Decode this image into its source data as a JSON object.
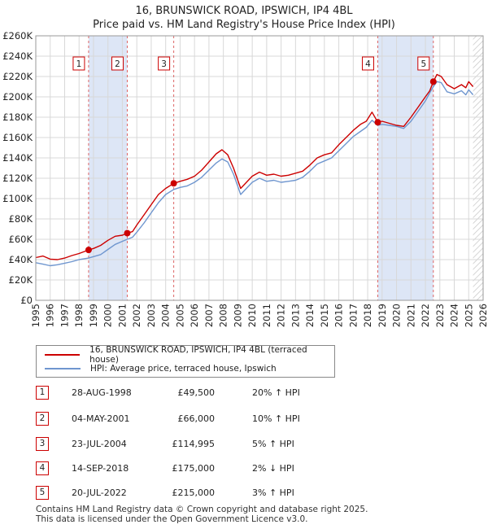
{
  "title": "16, BRUNSWICK ROAD, IPSWICH, IP4 4BL",
  "subtitle": "Price paid vs. HM Land Registry's House Price Index (HPI)",
  "colors": {
    "price": "#cc0000",
    "hpi": "#6f96cf",
    "shade": "#dde6f6",
    "vline": "#dd6666",
    "grid": "#d8d8d8",
    "badge_border": "#cc0000"
  },
  "chart_data": {
    "type": "line",
    "title": "16, BRUNSWICK ROAD, IPSWICH, IP4 4BL",
    "subtitle": "Price paid vs. HM Land Registry's House Price Index (HPI)",
    "xlim": [
      1995,
      2026
    ],
    "ylim": [
      0,
      260000
    ],
    "x_ticks": [
      1995,
      1996,
      1997,
      1998,
      1999,
      2000,
      2001,
      2002,
      2003,
      2004,
      2005,
      2006,
      2007,
      2008,
      2009,
      2010,
      2011,
      2012,
      2013,
      2014,
      2015,
      2016,
      2017,
      2018,
      2019,
      2020,
      2021,
      2022,
      2023,
      2024,
      2025,
      2026
    ],
    "y_ticks": [
      0,
      20000,
      40000,
      60000,
      80000,
      100000,
      120000,
      140000,
      160000,
      180000,
      200000,
      220000,
      240000,
      260000
    ],
    "y_tick_labels": [
      "£0",
      "£20K",
      "£40K",
      "£60K",
      "£80K",
      "£100K",
      "£120K",
      "£140K",
      "£160K",
      "£180K",
      "£200K",
      "£220K",
      "£240K",
      "£260K"
    ],
    "hatch_after": 2025.3,
    "series": [
      {
        "name": "16, BRUNSWICK ROAD, IPSWICH, IP4 4BL (terraced house)",
        "color": "#cc0000",
        "points": [
          [
            1995.0,
            42000
          ],
          [
            1995.5,
            43500
          ],
          [
            1996.0,
            40500
          ],
          [
            1996.5,
            40000
          ],
          [
            1997.0,
            41500
          ],
          [
            1997.5,
            44000
          ],
          [
            1998.0,
            46000
          ],
          [
            1998.66,
            49500
          ],
          [
            1999.0,
            51000
          ],
          [
            1999.5,
            54000
          ],
          [
            2000.0,
            59000
          ],
          [
            2000.5,
            63000
          ],
          [
            2001.0,
            64000
          ],
          [
            2001.34,
            66000
          ],
          [
            2001.7,
            67500
          ],
          [
            2002.0,
            74000
          ],
          [
            2002.5,
            84000
          ],
          [
            2003.0,
            94000
          ],
          [
            2003.5,
            104000
          ],
          [
            2004.0,
            110000
          ],
          [
            2004.56,
            114995
          ],
          [
            2005.0,
            117000
          ],
          [
            2005.5,
            119000
          ],
          [
            2006.0,
            122000
          ],
          [
            2006.5,
            128000
          ],
          [
            2007.0,
            136000
          ],
          [
            2007.5,
            144000
          ],
          [
            2007.9,
            148000
          ],
          [
            2008.3,
            143000
          ],
          [
            2008.7,
            130000
          ],
          [
            2009.2,
            110000
          ],
          [
            2009.6,
            116000
          ],
          [
            2010.0,
            122000
          ],
          [
            2010.5,
            126000
          ],
          [
            2011.0,
            123000
          ],
          [
            2011.5,
            124000
          ],
          [
            2012.0,
            122000
          ],
          [
            2012.5,
            123000
          ],
          [
            2013.0,
            125000
          ],
          [
            2013.5,
            127000
          ],
          [
            2014.0,
            133000
          ],
          [
            2014.5,
            140000
          ],
          [
            2015.0,
            143000
          ],
          [
            2015.5,
            145000
          ],
          [
            2016.0,
            153000
          ],
          [
            2016.5,
            160000
          ],
          [
            2017.0,
            167000
          ],
          [
            2017.5,
            173000
          ],
          [
            2017.9,
            176000
          ],
          [
            2018.3,
            185000
          ],
          [
            2018.7,
            175000
          ],
          [
            2019.0,
            176000
          ],
          [
            2019.5,
            174000
          ],
          [
            2020.0,
            172000
          ],
          [
            2020.5,
            171000
          ],
          [
            2021.0,
            180000
          ],
          [
            2021.5,
            190000
          ],
          [
            2022.0,
            200000
          ],
          [
            2022.3,
            206000
          ],
          [
            2022.55,
            215000
          ],
          [
            2022.8,
            222000
          ],
          [
            2023.1,
            220000
          ],
          [
            2023.5,
            212000
          ],
          [
            2024.0,
            208000
          ],
          [
            2024.5,
            212000
          ],
          [
            2024.8,
            209000
          ],
          [
            2025.0,
            215000
          ],
          [
            2025.3,
            210000
          ]
        ]
      },
      {
        "name": "HPI: Average price, terraced house, Ipswich",
        "color": "#6f96cf",
        "points": [
          [
            1995.0,
            37000
          ],
          [
            1995.5,
            35500
          ],
          [
            1996.0,
            34000
          ],
          [
            1996.5,
            35000
          ],
          [
            1997.0,
            36500
          ],
          [
            1997.5,
            38000
          ],
          [
            1998.0,
            40000
          ],
          [
            1998.66,
            41500
          ],
          [
            1999.0,
            43000
          ],
          [
            1999.5,
            45000
          ],
          [
            2000.0,
            50000
          ],
          [
            2000.5,
            55000
          ],
          [
            2001.0,
            58000
          ],
          [
            2001.34,
            60000
          ],
          [
            2001.7,
            62000
          ],
          [
            2002.0,
            67000
          ],
          [
            2002.5,
            76000
          ],
          [
            2003.0,
            86000
          ],
          [
            2003.5,
            96000
          ],
          [
            2004.0,
            104000
          ],
          [
            2004.56,
            109000
          ],
          [
            2005.0,
            111000
          ],
          [
            2005.5,
            112500
          ],
          [
            2006.0,
            116000
          ],
          [
            2006.5,
            121000
          ],
          [
            2007.0,
            128000
          ],
          [
            2007.5,
            135000
          ],
          [
            2007.9,
            139000
          ],
          [
            2008.3,
            136000
          ],
          [
            2008.7,
            124000
          ],
          [
            2009.2,
            104000
          ],
          [
            2009.6,
            110000
          ],
          [
            2010.0,
            116000
          ],
          [
            2010.5,
            120000
          ],
          [
            2011.0,
            117000
          ],
          [
            2011.5,
            118000
          ],
          [
            2012.0,
            116000
          ],
          [
            2012.5,
            117000
          ],
          [
            2013.0,
            118000
          ],
          [
            2013.5,
            121000
          ],
          [
            2014.0,
            127000
          ],
          [
            2014.5,
            134000
          ],
          [
            2015.0,
            137000
          ],
          [
            2015.5,
            140000
          ],
          [
            2016.0,
            147000
          ],
          [
            2016.5,
            154000
          ],
          [
            2017.0,
            161000
          ],
          [
            2017.5,
            166000
          ],
          [
            2017.9,
            170000
          ],
          [
            2018.3,
            177000
          ],
          [
            2018.7,
            172000
          ],
          [
            2019.0,
            173000
          ],
          [
            2019.5,
            172000
          ],
          [
            2020.0,
            171000
          ],
          [
            2020.5,
            169000
          ],
          [
            2021.0,
            176000
          ],
          [
            2021.5,
            186000
          ],
          [
            2022.0,
            196000
          ],
          [
            2022.3,
            204000
          ],
          [
            2022.55,
            210000
          ],
          [
            2022.8,
            215000
          ],
          [
            2023.1,
            214000
          ],
          [
            2023.5,
            205000
          ],
          [
            2024.0,
            203000
          ],
          [
            2024.5,
            206000
          ],
          [
            2024.8,
            202000
          ],
          [
            2025.0,
            207000
          ],
          [
            2025.3,
            202000
          ]
        ]
      }
    ],
    "sales": [
      {
        "label": "1",
        "date": "28-AUG-1998",
        "x": 1998.66,
        "price": 49500
      },
      {
        "label": "2",
        "date": "04-MAY-2001",
        "x": 2001.34,
        "price": 66000
      },
      {
        "label": "3",
        "date": "23-JUL-2004",
        "x": 2004.56,
        "price": 114995
      },
      {
        "label": "4",
        "date": "14-SEP-2018",
        "x": 2018.7,
        "price": 175000
      },
      {
        "label": "5",
        "date": "20-JUL-2022",
        "x": 2022.55,
        "price": 215000
      }
    ],
    "shaded_ranges": [
      [
        1998.66,
        2001.34
      ],
      [
        2018.7,
        2022.55
      ]
    ]
  },
  "legend": {
    "price_label": "16, BRUNSWICK ROAD, IPSWICH, IP4 4BL (terraced house)",
    "hpi_label": "HPI: Average price, terraced house, Ipswich"
  },
  "table": [
    {
      "num": "1",
      "date": "28-AUG-1998",
      "price": "£49,500",
      "hpi": "20% ↑ HPI"
    },
    {
      "num": "2",
      "date": "04-MAY-2001",
      "price": "£66,000",
      "hpi": "10% ↑ HPI"
    },
    {
      "num": "3",
      "date": "23-JUL-2004",
      "price": "£114,995",
      "hpi": "5% ↑ HPI"
    },
    {
      "num": "4",
      "date": "14-SEP-2018",
      "price": "£175,000",
      "hpi": "2% ↓ HPI"
    },
    {
      "num": "5",
      "date": "20-JUL-2022",
      "price": "£215,000",
      "hpi": "3% ↑ HPI"
    }
  ],
  "footer": {
    "line1": "Contains HM Land Registry data © Crown copyright and database right 2025.",
    "line2": "This data is licensed under the Open Government Licence v3.0."
  }
}
